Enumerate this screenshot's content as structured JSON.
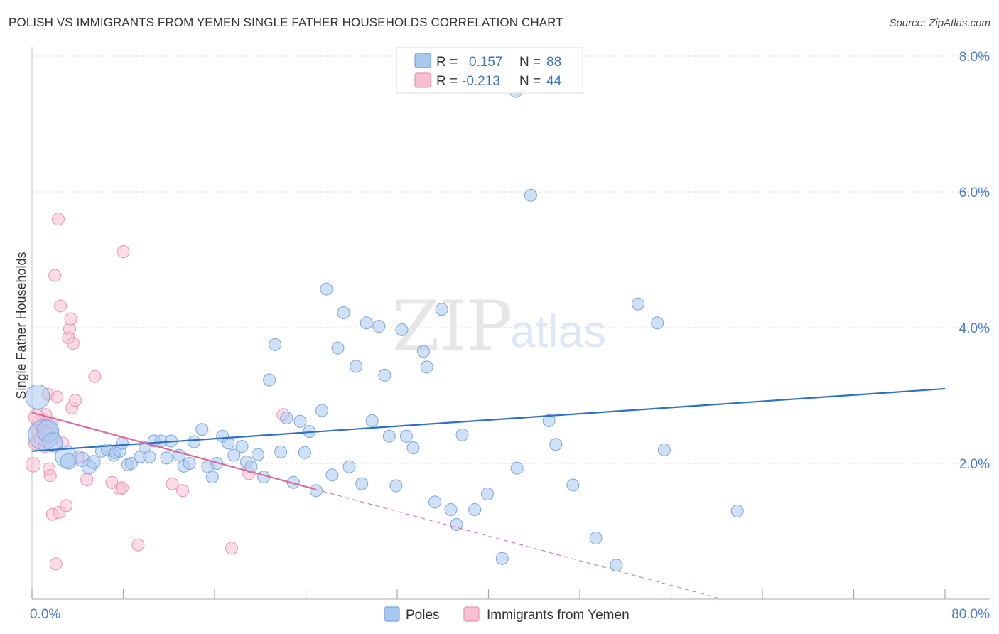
{
  "chart_title": "POLISH VS IMMIGRANTS FROM YEMEN SINGLE FATHER HOUSEHOLDS CORRELATION CHART",
  "source": "Source: ZipAtlas.com",
  "watermark": {
    "zip": "ZIP",
    "atlas": "atlas"
  },
  "colors": {
    "poles_fill": "#a9c8f0",
    "poles_stroke": "#7aa5de",
    "poles_line": "#2a6fcc",
    "yemen_fill": "#f7bfd2",
    "yemen_stroke": "#ec92b1",
    "yemen_line": "#e0689a",
    "tick_label": "#4a7cc9",
    "grid": "#d9d9d9"
  },
  "legend_top": {
    "rows": [
      {
        "r_label": "R =",
        "r_value": "0.157",
        "n_label": "N =",
        "n_value": "88"
      },
      {
        "r_label": "R =",
        "r_value": "-0.213",
        "n_label": "N =",
        "n_value": "44"
      }
    ]
  },
  "legend_bottom": {
    "poles": "Poles",
    "yemen": "Immigrants from Yemen"
  },
  "chart_data": {
    "type": "scatter",
    "title": "POLISH VS IMMIGRANTS FROM YEMEN SINGLE FATHER HOUSEHOLDS CORRELATION CHART",
    "xlabel": "",
    "ylabel": "Single Father Households",
    "xlim": [
      0,
      80
    ],
    "ylim": [
      0,
      8.0
    ],
    "x_tick_labels": [
      "0.0%",
      "80.0%"
    ],
    "y_ticks": [
      2.0,
      4.0,
      6.0,
      8.0
    ],
    "y_tick_labels": [
      "2.0%",
      "4.0%",
      "6.0%",
      "8.0%"
    ],
    "grid": true,
    "legend_position": "top-center",
    "series": [
      {
        "name": "Poles",
        "r": 0.157,
        "n": 88,
        "trend": {
          "x": [
            0,
            80
          ],
          "y": [
            2.18,
            3.1
          ]
        },
        "points": [
          {
            "x": 0.5,
            "y": 2.98,
            "s": 2.0
          },
          {
            "x": 1.0,
            "y": 2.42,
            "s": 2.5
          },
          {
            "x": 1.4,
            "y": 2.48,
            "s": 1.8
          },
          {
            "x": 1.8,
            "y": 2.31,
            "s": 1.6
          },
          {
            "x": 3.0,
            "y": 2.1,
            "s": 1.8
          },
          {
            "x": 3.2,
            "y": 2.03,
            "s": 1.3
          },
          {
            "x": 4.4,
            "y": 2.06,
            "s": 1.2
          },
          {
            "x": 5.0,
            "y": 1.95,
            "s": 1.2
          },
          {
            "x": 5.4,
            "y": 2.02,
            "s": 1.1
          },
          {
            "x": 6.1,
            "y": 2.18,
            "s": 1.0
          },
          {
            "x": 6.6,
            "y": 2.2,
            "s": 1.0
          },
          {
            "x": 7.2,
            "y": 2.12,
            "s": 1.0
          },
          {
            "x": 7.3,
            "y": 2.16,
            "s": 1.0
          },
          {
            "x": 7.7,
            "y": 2.18,
            "s": 1.0
          },
          {
            "x": 7.9,
            "y": 2.3,
            "s": 1.0
          },
          {
            "x": 8.4,
            "y": 1.98,
            "s": 1.0
          },
          {
            "x": 8.7,
            "y": 2.0,
            "s": 1.0
          },
          {
            "x": 9.5,
            "y": 2.1,
            "s": 1.0
          },
          {
            "x": 9.9,
            "y": 2.23,
            "s": 1.0
          },
          {
            "x": 10.3,
            "y": 2.1,
            "s": 1.0
          },
          {
            "x": 10.7,
            "y": 2.33,
            "s": 1.0
          },
          {
            "x": 11.3,
            "y": 2.33,
            "s": 1.0
          },
          {
            "x": 11.8,
            "y": 2.08,
            "s": 1.0
          },
          {
            "x": 12.2,
            "y": 2.33,
            "s": 1.0
          },
          {
            "x": 12.9,
            "y": 2.12,
            "s": 1.0
          },
          {
            "x": 13.3,
            "y": 1.96,
            "s": 1.0
          },
          {
            "x": 13.8,
            "y": 2.0,
            "s": 1.0
          },
          {
            "x": 14.2,
            "y": 2.32,
            "s": 1.0
          },
          {
            "x": 14.9,
            "y": 2.5,
            "s": 1.0
          },
          {
            "x": 15.4,
            "y": 1.95,
            "s": 1.0
          },
          {
            "x": 15.8,
            "y": 1.8,
            "s": 1.0
          },
          {
            "x": 16.2,
            "y": 2.0,
            "s": 1.0
          },
          {
            "x": 16.7,
            "y": 2.4,
            "s": 1.0
          },
          {
            "x": 17.2,
            "y": 2.3,
            "s": 1.0
          },
          {
            "x": 17.7,
            "y": 2.12,
            "s": 1.0
          },
          {
            "x": 18.4,
            "y": 2.25,
            "s": 1.0
          },
          {
            "x": 18.8,
            "y": 2.02,
            "s": 1.0
          },
          {
            "x": 19.2,
            "y": 1.95,
            "s": 1.0
          },
          {
            "x": 19.8,
            "y": 2.13,
            "s": 1.0
          },
          {
            "x": 20.3,
            "y": 1.8,
            "s": 1.0
          },
          {
            "x": 20.8,
            "y": 3.23,
            "s": 1.0
          },
          {
            "x": 21.3,
            "y": 3.75,
            "s": 1.0
          },
          {
            "x": 21.8,
            "y": 2.17,
            "s": 1.0
          },
          {
            "x": 22.3,
            "y": 2.67,
            "s": 1.0
          },
          {
            "x": 22.9,
            "y": 1.72,
            "s": 1.0
          },
          {
            "x": 23.5,
            "y": 2.62,
            "s": 1.0
          },
          {
            "x": 23.9,
            "y": 2.16,
            "s": 1.0
          },
          {
            "x": 24.3,
            "y": 2.47,
            "s": 1.0
          },
          {
            "x": 24.9,
            "y": 1.6,
            "s": 1.0
          },
          {
            "x": 25.4,
            "y": 2.78,
            "s": 1.0
          },
          {
            "x": 25.8,
            "y": 4.57,
            "s": 1.0
          },
          {
            "x": 26.3,
            "y": 1.83,
            "s": 1.0
          },
          {
            "x": 26.8,
            "y": 3.7,
            "s": 1.0
          },
          {
            "x": 27.3,
            "y": 4.22,
            "s": 1.0
          },
          {
            "x": 27.8,
            "y": 1.95,
            "s": 1.0
          },
          {
            "x": 28.4,
            "y": 3.43,
            "s": 1.0
          },
          {
            "x": 28.9,
            "y": 1.7,
            "s": 1.0
          },
          {
            "x": 29.3,
            "y": 4.07,
            "s": 1.0
          },
          {
            "x": 29.8,
            "y": 2.63,
            "s": 1.0
          },
          {
            "x": 30.4,
            "y": 4.02,
            "s": 1.0
          },
          {
            "x": 30.9,
            "y": 3.3,
            "s": 1.0
          },
          {
            "x": 31.3,
            "y": 2.4,
            "s": 1.0
          },
          {
            "x": 31.9,
            "y": 1.67,
            "s": 1.0
          },
          {
            "x": 32.4,
            "y": 3.97,
            "s": 1.0
          },
          {
            "x": 32.8,
            "y": 2.4,
            "s": 1.0
          },
          {
            "x": 33.4,
            "y": 2.23,
            "s": 1.0
          },
          {
            "x": 34.3,
            "y": 3.65,
            "s": 1.0
          },
          {
            "x": 34.6,
            "y": 3.42,
            "s": 1.0
          },
          {
            "x": 35.3,
            "y": 1.43,
            "s": 1.0
          },
          {
            "x": 35.9,
            "y": 4.27,
            "s": 1.0
          },
          {
            "x": 36.7,
            "y": 1.32,
            "s": 1.0
          },
          {
            "x": 37.2,
            "y": 1.1,
            "s": 1.0
          },
          {
            "x": 37.7,
            "y": 2.42,
            "s": 1.0
          },
          {
            "x": 38.8,
            "y": 1.32,
            "s": 1.0
          },
          {
            "x": 39.9,
            "y": 1.55,
            "s": 1.0
          },
          {
            "x": 41.2,
            "y": 0.6,
            "s": 1.0
          },
          {
            "x": 42.4,
            "y": 7.48,
            "s": 1.0
          },
          {
            "x": 42.5,
            "y": 1.93,
            "s": 1.0
          },
          {
            "x": 43.7,
            "y": 5.95,
            "s": 1.0
          },
          {
            "x": 45.3,
            "y": 2.63,
            "s": 1.0
          },
          {
            "x": 45.9,
            "y": 2.28,
            "s": 1.0
          },
          {
            "x": 47.4,
            "y": 1.68,
            "s": 1.0
          },
          {
            "x": 49.4,
            "y": 0.9,
            "s": 1.0
          },
          {
            "x": 51.2,
            "y": 0.5,
            "s": 1.0
          },
          {
            "x": 53.1,
            "y": 4.35,
            "s": 1.0
          },
          {
            "x": 54.8,
            "y": 4.07,
            "s": 1.0
          },
          {
            "x": 55.4,
            "y": 2.2,
            "s": 1.0
          },
          {
            "x": 61.8,
            "y": 1.3,
            "s": 1.0
          }
        ]
      },
      {
        "name": "Immigrants from Yemen",
        "r": -0.213,
        "n": 44,
        "trend": {
          "x": [
            0,
            24.8
          ],
          "y": [
            2.75,
            1.62
          ]
        },
        "trend_dashed": {
          "x": [
            24.8,
            60.5
          ],
          "y": [
            1.62,
            0.0
          ]
        },
        "points": [
          {
            "x": 0.1,
            "y": 1.98,
            "s": 1.2
          },
          {
            "x": 0.3,
            "y": 2.3,
            "s": 1.1
          },
          {
            "x": 0.5,
            "y": 2.5,
            "s": 1.2
          },
          {
            "x": 0.6,
            "y": 2.62,
            "s": 1.1
          },
          {
            "x": 0.7,
            "y": 2.36,
            "s": 1.0
          },
          {
            "x": 0.8,
            "y": 2.55,
            "s": 1.0
          },
          {
            "x": 1.0,
            "y": 2.65,
            "s": 1.0
          },
          {
            "x": 1.1,
            "y": 2.25,
            "s": 1.0
          },
          {
            "x": 1.2,
            "y": 2.72,
            "s": 1.0
          },
          {
            "x": 1.3,
            "y": 2.45,
            "s": 1.0
          },
          {
            "x": 1.4,
            "y": 3.02,
            "s": 1.0
          },
          {
            "x": 1.5,
            "y": 1.92,
            "s": 1.0
          },
          {
            "x": 1.6,
            "y": 1.82,
            "s": 1.0
          },
          {
            "x": 1.7,
            "y": 2.6,
            "s": 1.0
          },
          {
            "x": 1.8,
            "y": 1.25,
            "s": 1.0
          },
          {
            "x": 1.9,
            "y": 2.38,
            "s": 1.0
          },
          {
            "x": 2.0,
            "y": 4.77,
            "s": 1.0
          },
          {
            "x": 2.1,
            "y": 0.52,
            "s": 1.0
          },
          {
            "x": 2.2,
            "y": 2.98,
            "s": 1.0
          },
          {
            "x": 2.3,
            "y": 5.6,
            "s": 1.0
          },
          {
            "x": 2.4,
            "y": 1.28,
            "s": 1.0
          },
          {
            "x": 2.5,
            "y": 4.32,
            "s": 1.0
          },
          {
            "x": 2.7,
            "y": 2.3,
            "s": 1.0
          },
          {
            "x": 3.0,
            "y": 1.38,
            "s": 1.0
          },
          {
            "x": 3.2,
            "y": 3.85,
            "s": 1.0
          },
          {
            "x": 3.3,
            "y": 3.98,
            "s": 1.0
          },
          {
            "x": 3.4,
            "y": 4.13,
            "s": 1.0
          },
          {
            "x": 3.5,
            "y": 2.82,
            "s": 1.0
          },
          {
            "x": 3.6,
            "y": 3.77,
            "s": 1.0
          },
          {
            "x": 3.8,
            "y": 2.93,
            "s": 1.0
          },
          {
            "x": 4.1,
            "y": 2.1,
            "s": 1.0
          },
          {
            "x": 4.8,
            "y": 1.76,
            "s": 1.0
          },
          {
            "x": 5.5,
            "y": 3.28,
            "s": 1.0
          },
          {
            "x": 7.0,
            "y": 1.72,
            "s": 1.0
          },
          {
            "x": 7.7,
            "y": 1.62,
            "s": 1.0
          },
          {
            "x": 7.9,
            "y": 1.64,
            "s": 1.0
          },
          {
            "x": 8.0,
            "y": 5.12,
            "s": 1.0
          },
          {
            "x": 9.3,
            "y": 0.8,
            "s": 1.0
          },
          {
            "x": 12.3,
            "y": 1.7,
            "s": 1.0
          },
          {
            "x": 13.2,
            "y": 1.6,
            "s": 1.0
          },
          {
            "x": 17.5,
            "y": 0.75,
            "s": 1.0
          },
          {
            "x": 19.0,
            "y": 1.85,
            "s": 1.0
          },
          {
            "x": 22.0,
            "y": 2.72,
            "s": 1.0
          },
          {
            "x": 0.4,
            "y": 2.68,
            "s": 1.3
          }
        ]
      }
    ]
  }
}
